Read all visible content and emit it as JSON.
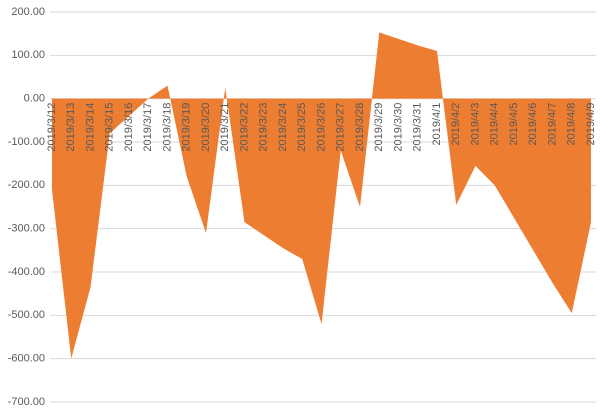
{
  "chart_data": {
    "type": "area",
    "color": "#ed7d31",
    "grid": true,
    "categories": [
      "2019/3/12",
      "2019/3/13",
      "2019/3/14",
      "2019/3/15",
      "2019/3/16",
      "2019/3/17",
      "2019/3/18",
      "2019/3/19",
      "2019/3/20",
      "2019/3/21",
      "2019/3/22",
      "2019/3/23",
      "2019/3/24",
      "2019/3/25",
      "2019/3/26",
      "2019/3/27",
      "2019/3/28",
      "2019/3/29",
      "2019/3/30",
      "2019/3/31",
      "2019/4/1",
      "2019/4/2",
      "2019/4/3",
      "2019/4/4",
      "2019/4/5",
      "2019/4/6",
      "2019/4/7",
      "2019/4/8",
      "2019/4/9"
    ],
    "values": [
      -210,
      -600,
      -435,
      -80,
      -40,
      0,
      30,
      -180,
      -310,
      25,
      -285,
      -315,
      -345,
      -370,
      -520,
      -120,
      -250,
      153,
      138,
      123,
      110,
      -245,
      -155,
      -200,
      -275,
      -350,
      -425,
      -495,
      -285
    ],
    "ylim": [
      -700,
      200
    ],
    "yticks": [
      {
        "value": -700,
        "label": "-700.00"
      },
      {
        "value": -600,
        "label": "-600.00"
      },
      {
        "value": -500,
        "label": "-500.00"
      },
      {
        "value": -400,
        "label": "-400.00"
      },
      {
        "value": -300,
        "label": "-300.00"
      },
      {
        "value": -200,
        "label": "-200.00"
      },
      {
        "value": -100,
        "label": "-100.00"
      },
      {
        "value": 0,
        "label": "0.00"
      },
      {
        "value": 100,
        "label": "100.00"
      },
      {
        "value": 200,
        "label": "200.00"
      }
    ]
  }
}
